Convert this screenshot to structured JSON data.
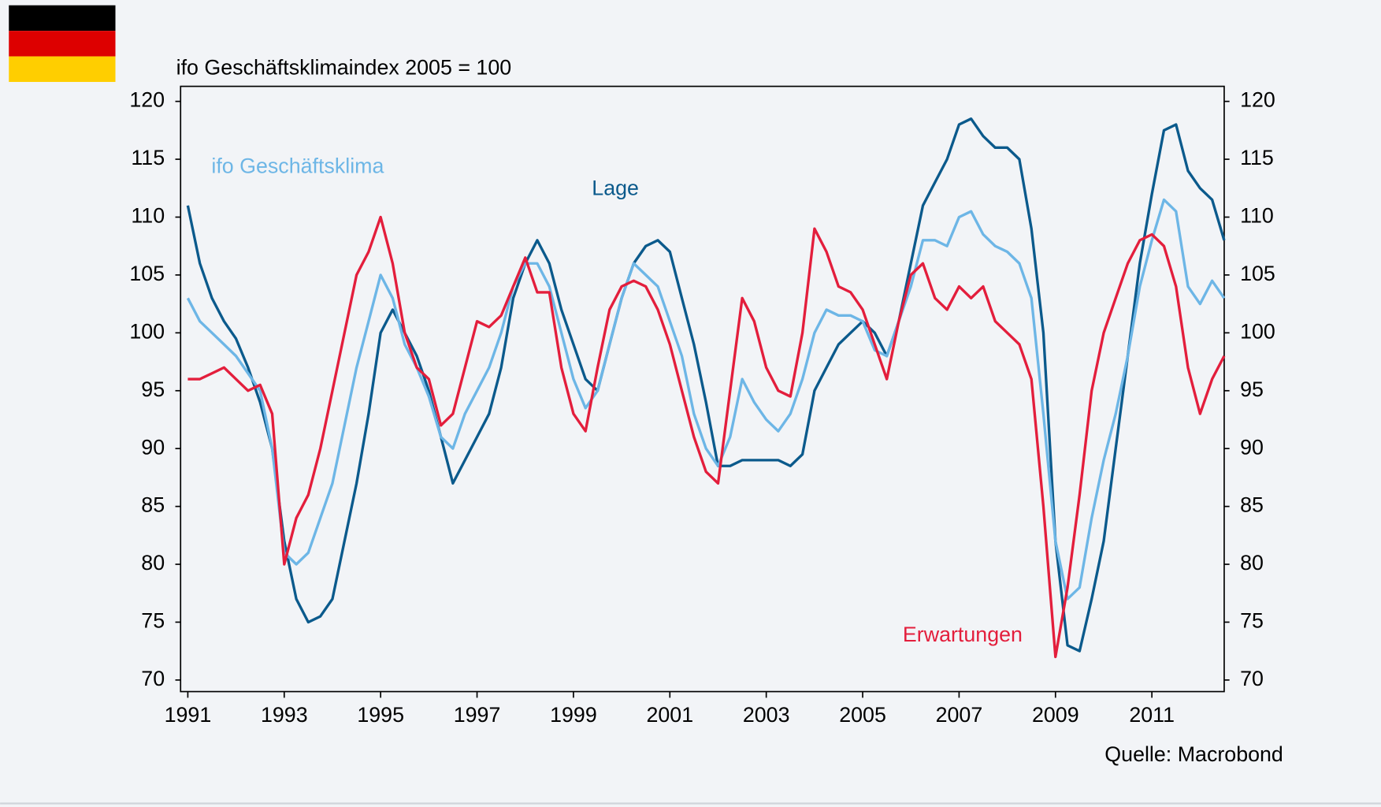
{
  "chart_data": {
    "type": "line",
    "y_axis_title": "ifo Geschäftsklimaindex 2005 = 100",
    "source": "Quelle: Macrobond",
    "x": [
      1991,
      1991.25,
      1991.5,
      1991.75,
      1992,
      1992.25,
      1992.5,
      1992.75,
      1993,
      1993.25,
      1993.5,
      1993.75,
      1994,
      1994.25,
      1994.5,
      1994.75,
      1995,
      1995.25,
      1995.5,
      1995.75,
      1996,
      1996.25,
      1996.5,
      1996.75,
      1997,
      1997.25,
      1997.5,
      1997.75,
      1998,
      1998.25,
      1998.5,
      1998.75,
      1999,
      1999.25,
      1999.5,
      1999.75,
      2000,
      2000.25,
      2000.5,
      2000.75,
      2001,
      2001.25,
      2001.5,
      2001.75,
      2002,
      2002.25,
      2002.5,
      2002.75,
      2003,
      2003.25,
      2003.5,
      2003.75,
      2004,
      2004.25,
      2004.5,
      2004.75,
      2005,
      2005.25,
      2005.5,
      2005.75,
      2006,
      2006.25,
      2006.5,
      2006.75,
      2007,
      2007.25,
      2007.5,
      2007.75,
      2008,
      2008.25,
      2008.5,
      2008.75,
      2009,
      2009.25,
      2009.5,
      2009.75,
      2010,
      2010.25,
      2010.5,
      2010.75,
      2011,
      2011.25,
      2011.5,
      2011.75,
      2012,
      2012.25,
      2012.5
    ],
    "series": [
      {
        "name": "Lage",
        "color": "#0b5a8c",
        "values": [
          111,
          106,
          103,
          101,
          99.5,
          97,
          94,
          90,
          82,
          77,
          75,
          75.5,
          77,
          82,
          87,
          93,
          100,
          102,
          100,
          98,
          95,
          91,
          87,
          89,
          91,
          93,
          97,
          103,
          106,
          108,
          106,
          102,
          99,
          96,
          95,
          99,
          103,
          106,
          107.5,
          108,
          107,
          103,
          99,
          94,
          88.5,
          88.5,
          89,
          89,
          89,
          89,
          88.5,
          89.5,
          95,
          97,
          99,
          100,
          101,
          100,
          98,
          101,
          106,
          111,
          113,
          115,
          118,
          118.5,
          117,
          116,
          116,
          115,
          109,
          100,
          82,
          73,
          72.5,
          77,
          82,
          90,
          98,
          106,
          112,
          117.5,
          118,
          114,
          112.5,
          111.5,
          108
        ]
      },
      {
        "name": "ifo Geschäftsklima",
        "color": "#6db6e6",
        "values": [
          103,
          101,
          100,
          99,
          98,
          96.5,
          95,
          90,
          81,
          80,
          81,
          84,
          87,
          92,
          97,
          101,
          105,
          103,
          99,
          97,
          94.5,
          91,
          90,
          93,
          95,
          97,
          100,
          104,
          106,
          106,
          104,
          100,
          96,
          93.5,
          95,
          99,
          103,
          106,
          105,
          104,
          101,
          98,
          93,
          90,
          88.5,
          91,
          96,
          94,
          92.5,
          91.5,
          93,
          96,
          100,
          102,
          101.5,
          101.5,
          101,
          98.5,
          98,
          101,
          104,
          108,
          108,
          107.5,
          110,
          110.5,
          108.5,
          107.5,
          107,
          106,
          103,
          93,
          82,
          77,
          78,
          84,
          89,
          93,
          98,
          104,
          108,
          111.5,
          110.5,
          104,
          102.5,
          104.5,
          103
        ]
      },
      {
        "name": "Erwartungen",
        "color": "#e31e3c",
        "values": [
          96,
          96,
          96.5,
          97,
          96,
          95,
          95.5,
          93,
          80,
          84,
          86,
          90,
          95,
          100,
          105,
          107,
          110,
          106,
          100,
          97,
          96,
          92,
          93,
          97,
          101,
          100.5,
          101.5,
          104,
          106.5,
          103.5,
          103.5,
          97,
          93,
          91.5,
          97,
          102,
          104,
          104.5,
          104,
          102,
          99,
          95,
          91,
          88,
          87,
          95,
          103,
          101,
          97,
          95,
          94.5,
          100,
          109,
          107,
          104,
          103.5,
          102,
          99,
          96,
          101,
          105,
          106,
          103,
          102,
          104,
          103,
          104,
          101,
          100,
          99,
          96,
          85,
          72,
          78,
          86,
          95,
          100,
          103,
          106,
          108,
          108.5,
          107.5,
          104,
          97,
          93,
          96,
          98
        ]
      }
    ],
    "xlim": [
      1990.85,
      2012.5
    ],
    "xticks": [
      1991,
      1993,
      1995,
      1997,
      1999,
      2001,
      2003,
      2005,
      2007,
      2009,
      2011
    ],
    "ylim": [
      69,
      121.3
    ],
    "yticks": [
      70,
      75,
      80,
      85,
      90,
      95,
      100,
      105,
      110,
      115,
      120
    ],
    "y2lim": [
      69,
      121.3
    ],
    "y2ticks": [
      70,
      75,
      80,
      85,
      90,
      95,
      100,
      105,
      110,
      115,
      120
    ]
  }
}
